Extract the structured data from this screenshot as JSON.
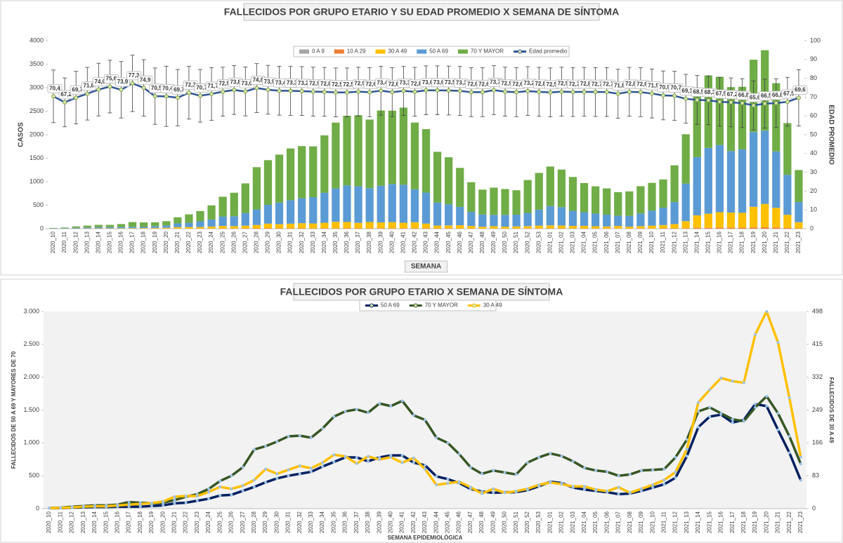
{
  "chart_data": [
    {
      "type": "bar",
      "stacked": true,
      "title": "FALLECIDOS POR GRUPO ETARIO Y SU EDAD PROMEDIO X SEMANA DE SÍNTOMA",
      "y_label": "CASOS",
      "y2_label": "EDAD PROMEDIO",
      "x_label": "SEMANA",
      "categories": [
        "2020_10",
        "2020_11",
        "2020_12",
        "2020_13",
        "2020_14",
        "2020_15",
        "2020_16",
        "2020_17",
        "2020_18",
        "2020_19",
        "2020_20",
        "2020_21",
        "2020_22",
        "2020_23",
        "2020_24",
        "2020_25",
        "2020_26",
        "2020_27",
        "2020_28",
        "2020_29",
        "2020_30",
        "2020_31",
        "2020_32",
        "2020_33",
        "2020_34",
        "2020_35",
        "2020_36",
        "2020_37",
        "2020_38",
        "2020_39",
        "2020_40",
        "2020_41",
        "2020_42",
        "2020_43",
        "2020_44",
        "2020_45",
        "2020_46",
        "2020_47",
        "2020_48",
        "2020_49",
        "2020_50",
        "2020_51",
        "2020_52",
        "2020_53",
        "2021_01",
        "2021_02",
        "2021_03",
        "2021_04",
        "2021_05",
        "2021_06",
        "2021_07",
        "2021_08",
        "2021_09",
        "2021_10",
        "2021_11",
        "2021_12",
        "2021_13",
        "2021_14",
        "2021_15",
        "2021_16",
        "2021_17",
        "2021_18",
        "2021_19",
        "2021_20",
        "2021_21",
        "2021_22",
        "2021_23"
      ],
      "ylim": [
        0,
        4000
      ],
      "yticks": [
        0,
        500,
        1000,
        1500,
        2000,
        2500,
        3000,
        3500,
        4000
      ],
      "y2lim": [
        0,
        100
      ],
      "y2ticks": [
        0,
        10,
        20,
        30,
        40,
        50,
        60,
        70,
        80,
        90,
        100
      ],
      "series": [
        {
          "name": "0 A 9",
          "color": "#a5a5a5",
          "values": [
            0,
            0,
            0,
            0,
            0,
            0,
            0,
            0,
            0,
            0,
            0,
            0,
            0,
            0,
            0,
            0,
            0,
            0,
            0,
            0,
            0,
            0,
            0,
            0,
            0,
            0,
            0,
            0,
            0,
            0,
            0,
            0,
            0,
            0,
            0,
            0,
            0,
            0,
            0,
            0,
            0,
            0,
            0,
            0,
            0,
            0,
            0,
            0,
            0,
            0,
            0,
            0,
            0,
            0,
            0,
            0,
            0,
            1,
            1,
            1,
            1,
            1,
            1,
            1,
            1,
            0,
            0
          ]
        },
        {
          "name": "10 A 29",
          "color": "#ed7d31",
          "values": [
            0,
            0,
            1,
            1,
            1,
            1,
            1,
            1,
            2,
            2,
            2,
            3,
            3,
            4,
            4,
            5,
            5,
            6,
            7,
            8,
            8,
            9,
            9,
            9,
            10,
            11,
            11,
            10,
            10,
            11,
            11,
            10,
            10,
            9,
            6,
            6,
            6,
            5,
            4,
            4,
            4,
            4,
            5,
            6,
            6,
            6,
            5,
            5,
            4,
            4,
            4,
            4,
            5,
            5,
            6,
            7,
            10,
            15,
            18,
            20,
            20,
            20,
            25,
            28,
            24,
            16,
            8
          ]
        },
        {
          "name": "30 A 49",
          "color": "#ffc000",
          "values": [
            1,
            2,
            3,
            5,
            6,
            6,
            8,
            10,
            12,
            14,
            18,
            30,
            32,
            32,
            42,
            55,
            50,
            58,
            72,
            100,
            88,
            98,
            108,
            102,
            116,
            136,
            132,
            114,
            132,
            124,
            130,
            116,
            128,
            100,
            60,
            64,
            68,
            54,
            38,
            50,
            40,
            44,
            50,
            60,
            66,
            62,
            56,
            56,
            48,
            44,
            54,
            40,
            50,
            60,
            72,
            92,
            150,
            268,
            300,
            330,
            322,
            318,
            440,
            498,
            420,
            280,
            130
          ]
        },
        {
          "name": "50 A 69",
          "color": "#5b9bd5",
          "values": [
            5,
            8,
            15,
            20,
            25,
            25,
            30,
            30,
            30,
            40,
            50,
            80,
            90,
            120,
            150,
            200,
            210,
            270,
            330,
            400,
            460,
            500,
            530,
            560,
            640,
            710,
            780,
            780,
            720,
            780,
            810,
            810,
            700,
            660,
            490,
            450,
            390,
            300,
            260,
            240,
            250,
            250,
            280,
            340,
            410,
            390,
            320,
            290,
            270,
            250,
            220,
            230,
            270,
            320,
            370,
            470,
            800,
            1240,
            1400,
            1430,
            1310,
            1350,
            1590,
            1560,
            1200,
            850,
            430
          ]
        },
        {
          "name": "70 Y MAYOR",
          "color": "#70ad47",
          "values": [
            10,
            15,
            30,
            40,
            50,
            50,
            60,
            100,
            90,
            80,
            90,
            130,
            180,
            220,
            300,
            420,
            500,
            630,
            900,
            950,
            1020,
            1100,
            1110,
            1080,
            1220,
            1400,
            1480,
            1510,
            1460,
            1600,
            1560,
            1640,
            1420,
            1350,
            1080,
            1000,
            830,
            630,
            530,
            580,
            550,
            520,
            700,
            780,
            840,
            800,
            720,
            620,
            580,
            560,
            500,
            520,
            580,
            590,
            600,
            780,
            1050,
            1480,
            1540,
            1450,
            1360,
            1330,
            1540,
            1710,
            1450,
            1100,
            680
          ]
        },
        {
          "name": "Edad promedio",
          "color": "#2f5597",
          "type": "line",
          "axis": "y2",
          "values": [
            70.4,
            67.2,
            69.7,
            71.8,
            74.0,
            75.6,
            73.9,
            77.3,
            74.9,
            70.5,
            70.4,
            69.7,
            72.3,
            70.7,
            71.7,
            72.9,
            73.8,
            73.0,
            74.8,
            73.9,
            73.4,
            73.3,
            73.2,
            72.9,
            72.8,
            72.5,
            72.5,
            72.9,
            72.6,
            73.4,
            72.6,
            73.3,
            72.8,
            73.6,
            73.6,
            73.5,
            73.3,
            72.6,
            72.6,
            73.7,
            72.9,
            72.6,
            73.2,
            72.8,
            72.5,
            72.9,
            72.7,
            72.8,
            72.7,
            72.7,
            71.8,
            72.8,
            72.6,
            71.9,
            70.9,
            70.7,
            69.1,
            68.5,
            68.3,
            67.5,
            67.2,
            66.8,
            65.6,
            66.5,
            66.8,
            67.5,
            69.6
          ],
          "value_labels": [
            "70,4",
            "67,2",
            "69,7",
            "71,8",
            "74,0",
            "75,6",
            "73,9",
            "77,3",
            "74,9",
            "70,5",
            "70,4",
            "69,7",
            "72,3",
            "70,7",
            "71,7",
            "72,9",
            "73,8",
            "73,0",
            "74,8",
            "73,9",
            "73,4",
            "73,3",
            "73,2",
            "72,9",
            "72,8",
            "72,5",
            "72,5",
            "72,9",
            "72,6",
            "73,4",
            "72,6",
            "73,3",
            "72,8",
            "73,6",
            "73,6",
            "73,5",
            "73,3",
            "72,6",
            "72,6",
            "73,7",
            "72,9",
            "72,6",
            "73,2",
            "72,8",
            "72,5",
            "72,9",
            "72,7",
            "72,8",
            "72,7",
            "72,7",
            "71,8",
            "72,8",
            "72,6",
            "71,9",
            "70,9",
            "70,7",
            "69,1",
            "68,5",
            "68,3",
            "67,5",
            "67,2",
            "66,8",
            "65,6",
            "66,5",
            "66,8",
            "67,5",
            "69,6"
          ],
          "errors": [
            14,
            13,
            14,
            14,
            14,
            14,
            15,
            15,
            15,
            15,
            16,
            15,
            14,
            14,
            14,
            13,
            13,
            13,
            13,
            13,
            13,
            13,
            13,
            13,
            13,
            13,
            13,
            13,
            13,
            13,
            13,
            13,
            13,
            13,
            13,
            13,
            13,
            13,
            13,
            13,
            13,
            13,
            13,
            13,
            13,
            13,
            13,
            13,
            13,
            13,
            13,
            13,
            13,
            13,
            13,
            13,
            13,
            13,
            13,
            13,
            13,
            13,
            13,
            13,
            13,
            13,
            15
          ]
        }
      ]
    },
    {
      "type": "line",
      "title": "FALLECIDOS POR GRUPO ETARIO X SEMANA DE SÍNTOMA",
      "y_label": "FALLECIDOS DE 50 A 69 Y MAYORES DE 70",
      "y2_label": "FALLECIDOS DE 30 A 49",
      "x_label": "SEMANA EPIDEMIOLÓGICA",
      "categories": [
        "2020_10",
        "2020_11",
        "2020_12",
        "2020_13",
        "2020_14",
        "2020_15",
        "2020_16",
        "2020_17",
        "2020_18",
        "2020_19",
        "2020_20",
        "2020_21",
        "2020_22",
        "2020_23",
        "2020_24",
        "2020_25",
        "2020_26",
        "2020_27",
        "2020_28",
        "2020_29",
        "2020_30",
        "2020_31",
        "2020_32",
        "2020_33",
        "2020_34",
        "2020_35",
        "2020_36",
        "2020_37",
        "2020_38",
        "2020_39",
        "2020_40",
        "2020_41",
        "2020_42",
        "2020_43",
        "2020_44",
        "2020_45",
        "2020_46",
        "2020_47",
        "2020_48",
        "2020_49",
        "2020_50",
        "2020_51",
        "2020_52",
        "2020_53",
        "2021_01",
        "2021_02",
        "2021_03",
        "2021_04",
        "2021_05",
        "2021_06",
        "2021_07",
        "2021_08",
        "2021_09",
        "2021_10",
        "2021_11",
        "2021_12",
        "2021_13",
        "2021_14",
        "2021_15",
        "2021_16",
        "2021_17",
        "2021_18",
        "2021_19",
        "2021_20",
        "2021_21",
        "2021_22",
        "2021_23"
      ],
      "ylim": [
        0,
        3000
      ],
      "yticks": [
        0,
        500,
        {
          "value": 1000,
          "label": "1.000"
        },
        {
          "value": 1500,
          "label": "1.500"
        },
        {
          "value": 2000,
          "label": "2.000"
        },
        {
          "value": 2500,
          "label": "2.500"
        },
        {
          "value": 3000,
          "label": "3.000"
        }
      ],
      "y2lim": [
        0,
        498
      ],
      "y2ticks": [
        0,
        83,
        166,
        249,
        332,
        415,
        498
      ],
      "series": [
        {
          "name": "50 A 69",
          "color": "#002060",
          "values": [
            5,
            8,
            15,
            20,
            25,
            25,
            30,
            30,
            30,
            40,
            50,
            80,
            90,
            120,
            150,
            200,
            210,
            270,
            330,
            400,
            460,
            500,
            530,
            560,
            640,
            710,
            780,
            780,
            720,
            780,
            810,
            810,
            700,
            660,
            490,
            450,
            390,
            300,
            260,
            240,
            250,
            250,
            280,
            340,
            410,
            390,
            320,
            290,
            270,
            250,
            220,
            230,
            270,
            320,
            370,
            470,
            800,
            1240,
            1400,
            1430,
            1310,
            1350,
            1590,
            1560,
            1200,
            850,
            430
          ]
        },
        {
          "name": "70 Y MAYOR",
          "color": "#375623",
          "values": [
            10,
            15,
            30,
            40,
            50,
            50,
            60,
            100,
            90,
            80,
            90,
            130,
            180,
            220,
            300,
            420,
            500,
            630,
            900,
            950,
            1020,
            1100,
            1110,
            1080,
            1220,
            1400,
            1480,
            1510,
            1460,
            1600,
            1560,
            1640,
            1420,
            1350,
            1080,
            1000,
            830,
            630,
            530,
            580,
            550,
            520,
            700,
            780,
            840,
            800,
            720,
            620,
            580,
            560,
            500,
            520,
            580,
            590,
            600,
            780,
            1050,
            1480,
            1540,
            1450,
            1360,
            1330,
            1540,
            1710,
            1450,
            1100,
            680
          ]
        },
        {
          "name": "30 A 49",
          "color": "#ffc000",
          "axis": "y2",
          "values": [
            1,
            2,
            3,
            5,
            6,
            6,
            8,
            10,
            12,
            14,
            18,
            30,
            32,
            32,
            42,
            55,
            50,
            58,
            72,
            100,
            88,
            98,
            108,
            102,
            116,
            136,
            132,
            114,
            132,
            124,
            130,
            116,
            128,
            100,
            60,
            64,
            68,
            54,
            38,
            50,
            40,
            44,
            50,
            60,
            66,
            62,
            56,
            56,
            48,
            44,
            54,
            40,
            50,
            60,
            72,
            92,
            150,
            268,
            300,
            330,
            322,
            318,
            440,
            498,
            420,
            280,
            130
          ]
        }
      ]
    }
  ]
}
